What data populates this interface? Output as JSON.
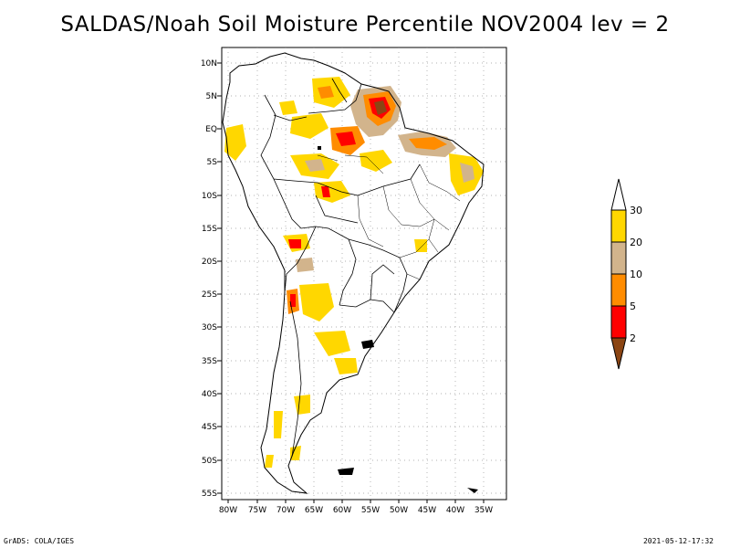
{
  "title": "SALDAS/Noah Soil Moisture Percentile NOV2004 lev = 2",
  "footer": {
    "left": "GrADS: COLA/IGES",
    "right": "2021-05-12-17:32"
  },
  "map": {
    "lat_labels": [
      "10N",
      "5N",
      "EQ",
      "5S",
      "10S",
      "15S",
      "20S",
      "25S",
      "30S",
      "35S",
      "40S",
      "45S",
      "50S",
      "55S"
    ],
    "lon_labels": [
      "80W",
      "75W",
      "70W",
      "65W",
      "60W",
      "55W",
      "50W",
      "45W",
      "40W",
      "35W"
    ],
    "lat_values": [
      10,
      5,
      0,
      -5,
      -10,
      -15,
      -20,
      -25,
      -30,
      -35,
      -40,
      -45,
      -50,
      -55
    ],
    "lon_values": [
      -80,
      -75,
      -70,
      -65,
      -60,
      -55,
      -50,
      -45,
      -40,
      -35
    ],
    "region": "South America",
    "grid": true
  },
  "colorbar": {
    "labels": [
      "2",
      "5",
      "10",
      "20",
      "30"
    ],
    "colors": [
      "#8b4513",
      "#ff0000",
      "#ff8c00",
      "#d2b48c",
      "#ffd700",
      "#ffffff"
    ]
  }
}
